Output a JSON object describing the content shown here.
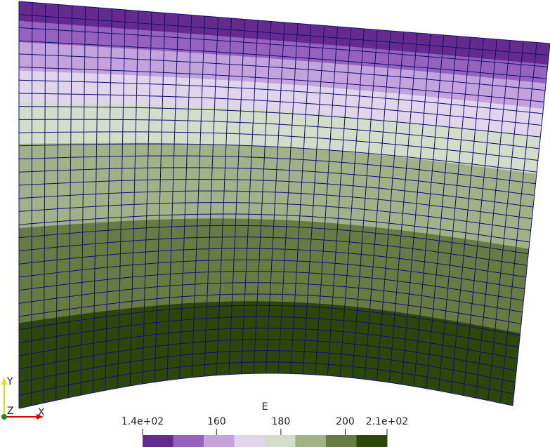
{
  "colorbar": {
    "title": "E",
    "range": [
      137,
      213
    ],
    "ticks": [
      {
        "value": 137,
        "label": "1.4e+02"
      },
      160,
      180,
      200,
      {
        "value": 213,
        "label": "2.1e+02"
      }
    ],
    "colors": [
      "#642a8e",
      "#9562be",
      "#c4a3dc",
      "#e1d5ec",
      "#d4dcca",
      "#a3b189",
      "#687b42",
      "#2d470a"
    ]
  },
  "axes_triad": {
    "x": "X",
    "y": "Y",
    "z": "Z"
  }
}
